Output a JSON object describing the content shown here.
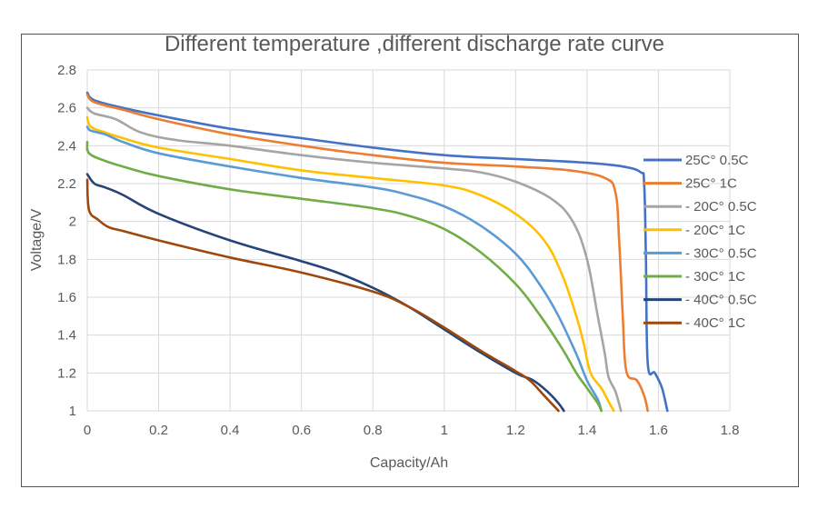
{
  "chart_data": {
    "type": "line",
    "title": "Different temperature ,different discharge rate curve",
    "xlabel": "Capacity/Ah",
    "ylabel": "Voltage/V",
    "xlim": [
      0,
      1.8
    ],
    "ylim": [
      1,
      2.8
    ],
    "x_ticks": [
      "0",
      "0.2",
      "0.4",
      "0.6",
      "0.8",
      "1",
      "1.2",
      "1.4",
      "1.6",
      "1.8"
    ],
    "y_ticks": [
      "1",
      "1.2",
      "1.4",
      "1.6",
      "1.8",
      "2",
      "2.2",
      "2.4",
      "2.6",
      "2.8"
    ],
    "grid": true,
    "legend_position": "right",
    "series": [
      {
        "name": "25C° 0.5C",
        "color": "#4472C4",
        "points": [
          [
            0,
            2.68
          ],
          [
            0.02,
            2.64
          ],
          [
            0.1,
            2.6
          ],
          [
            0.2,
            2.56
          ],
          [
            0.4,
            2.49
          ],
          [
            0.6,
            2.44
          ],
          [
            0.8,
            2.39
          ],
          [
            1.0,
            2.35
          ],
          [
            1.2,
            2.33
          ],
          [
            1.4,
            2.31
          ],
          [
            1.5,
            2.29
          ],
          [
            1.55,
            2.26
          ],
          [
            1.56,
            2.2
          ],
          [
            1.565,
            1.8
          ],
          [
            1.57,
            1.25
          ],
          [
            1.59,
            1.2
          ],
          [
            1.61,
            1.12
          ],
          [
            1.625,
            1.0
          ]
        ]
      },
      {
        "name": "25C° 1C",
        "color": "#ED7D31",
        "points": [
          [
            0,
            2.67
          ],
          [
            0.02,
            2.63
          ],
          [
            0.1,
            2.59
          ],
          [
            0.2,
            2.54
          ],
          [
            0.4,
            2.46
          ],
          [
            0.6,
            2.4
          ],
          [
            0.8,
            2.35
          ],
          [
            1.0,
            2.31
          ],
          [
            1.2,
            2.29
          ],
          [
            1.35,
            2.27
          ],
          [
            1.45,
            2.23
          ],
          [
            1.48,
            2.15
          ],
          [
            1.49,
            1.9
          ],
          [
            1.5,
            1.5
          ],
          [
            1.51,
            1.21
          ],
          [
            1.54,
            1.16
          ],
          [
            1.56,
            1.08
          ],
          [
            1.57,
            1.0
          ]
        ]
      },
      {
        "name": "- 20C° 0.5C",
        "color": "#A5A5A5",
        "points": [
          [
            0,
            2.6
          ],
          [
            0.02,
            2.57
          ],
          [
            0.08,
            2.54
          ],
          [
            0.15,
            2.47
          ],
          [
            0.25,
            2.43
          ],
          [
            0.4,
            2.4
          ],
          [
            0.6,
            2.35
          ],
          [
            0.8,
            2.31
          ],
          [
            1.0,
            2.28
          ],
          [
            1.1,
            2.26
          ],
          [
            1.2,
            2.21
          ],
          [
            1.3,
            2.12
          ],
          [
            1.36,
            2.0
          ],
          [
            1.4,
            1.8
          ],
          [
            1.43,
            1.5
          ],
          [
            1.45,
            1.3
          ],
          [
            1.46,
            1.18
          ],
          [
            1.48,
            1.1
          ],
          [
            1.495,
            1.0
          ]
        ]
      },
      {
        "name": "- 20C° 1C",
        "color": "#FFC000",
        "points": [
          [
            0,
            2.55
          ],
          [
            0.01,
            2.5
          ],
          [
            0.05,
            2.47
          ],
          [
            0.1,
            2.44
          ],
          [
            0.2,
            2.39
          ],
          [
            0.4,
            2.33
          ],
          [
            0.6,
            2.27
          ],
          [
            0.8,
            2.23
          ],
          [
            1.0,
            2.19
          ],
          [
            1.1,
            2.14
          ],
          [
            1.2,
            2.04
          ],
          [
            1.28,
            1.9
          ],
          [
            1.33,
            1.72
          ],
          [
            1.37,
            1.5
          ],
          [
            1.39,
            1.36
          ],
          [
            1.41,
            1.2
          ],
          [
            1.44,
            1.12
          ],
          [
            1.46,
            1.05
          ],
          [
            1.475,
            1.0
          ]
        ]
      },
      {
        "name": "- 30C° 0.5C",
        "color": "#5B9BD5",
        "points": [
          [
            0,
            2.5
          ],
          [
            0.01,
            2.48
          ],
          [
            0.05,
            2.46
          ],
          [
            0.1,
            2.42
          ],
          [
            0.2,
            2.36
          ],
          [
            0.4,
            2.29
          ],
          [
            0.6,
            2.23
          ],
          [
            0.8,
            2.18
          ],
          [
            0.9,
            2.14
          ],
          [
            1.0,
            2.08
          ],
          [
            1.1,
            1.98
          ],
          [
            1.2,
            1.83
          ],
          [
            1.27,
            1.66
          ],
          [
            1.32,
            1.5
          ],
          [
            1.37,
            1.3
          ],
          [
            1.4,
            1.16
          ],
          [
            1.43,
            1.06
          ],
          [
            1.44,
            1.0
          ]
        ]
      },
      {
        "name": "- 30C° 1C",
        "color": "#70AD47",
        "points": [
          [
            0,
            2.42
          ],
          [
            0.005,
            2.36
          ],
          [
            0.05,
            2.32
          ],
          [
            0.1,
            2.29
          ],
          [
            0.2,
            2.24
          ],
          [
            0.4,
            2.17
          ],
          [
            0.6,
            2.12
          ],
          [
            0.8,
            2.07
          ],
          [
            0.9,
            2.03
          ],
          [
            1.0,
            1.96
          ],
          [
            1.1,
            1.84
          ],
          [
            1.2,
            1.67
          ],
          [
            1.27,
            1.5
          ],
          [
            1.33,
            1.33
          ],
          [
            1.37,
            1.2
          ],
          [
            1.4,
            1.12
          ],
          [
            1.43,
            1.04
          ],
          [
            1.44,
            1.0
          ]
        ]
      },
      {
        "name": "- 40C° 0.5C",
        "color": "#264478",
        "points": [
          [
            0,
            2.25
          ],
          [
            0.02,
            2.2
          ],
          [
            0.05,
            2.18
          ],
          [
            0.1,
            2.14
          ],
          [
            0.2,
            2.04
          ],
          [
            0.4,
            1.9
          ],
          [
            0.6,
            1.79
          ],
          [
            0.7,
            1.73
          ],
          [
            0.8,
            1.65
          ],
          [
            0.9,
            1.55
          ],
          [
            1.0,
            1.43
          ],
          [
            1.1,
            1.31
          ],
          [
            1.2,
            1.2
          ],
          [
            1.25,
            1.16
          ],
          [
            1.29,
            1.1
          ],
          [
            1.32,
            1.04
          ],
          [
            1.335,
            1.0
          ]
        ]
      },
      {
        "name": "- 40C° 1C",
        "color": "#9E480E",
        "points": [
          [
            0,
            2.22
          ],
          [
            0.005,
            2.06
          ],
          [
            0.03,
            2.01
          ],
          [
            0.06,
            1.97
          ],
          [
            0.1,
            1.95
          ],
          [
            0.2,
            1.9
          ],
          [
            0.4,
            1.81
          ],
          [
            0.6,
            1.73
          ],
          [
            0.8,
            1.63
          ],
          [
            0.9,
            1.55
          ],
          [
            1.0,
            1.44
          ],
          [
            1.1,
            1.32
          ],
          [
            1.2,
            1.21
          ],
          [
            1.24,
            1.16
          ],
          [
            1.28,
            1.08
          ],
          [
            1.31,
            1.02
          ],
          [
            1.32,
            1.0
          ]
        ]
      }
    ]
  }
}
